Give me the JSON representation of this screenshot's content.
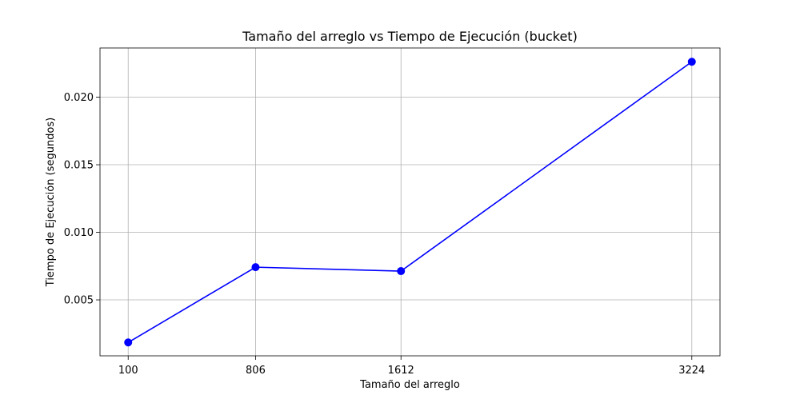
{
  "chart_data": {
    "type": "line",
    "title": "Tamaño del arreglo vs Tiempo de Ejecución (bucket)",
    "xlabel": "Tamaño del arreglo",
    "ylabel": "Tiempo de Ejecución (segundos)",
    "x": [
      100,
      806,
      1612,
      3224
    ],
    "xticks": [
      100,
      806,
      1612,
      3224
    ],
    "xtick_labels": [
      "100",
      "806",
      "1612",
      "3224"
    ],
    "yticks": [
      0.005,
      0.01,
      0.015,
      0.02
    ],
    "ytick_labels": [
      "0.005",
      "0.010",
      "0.015",
      "0.020"
    ],
    "xlim": [
      -56.2,
      3380.2
    ],
    "ylim": [
      0.00086,
      0.02364
    ],
    "grid": true,
    "series": [
      {
        "color": "#0000ff",
        "marker": "circle",
        "values": [
          0.00185,
          0.00742,
          0.00713,
          0.02262
        ]
      }
    ]
  }
}
